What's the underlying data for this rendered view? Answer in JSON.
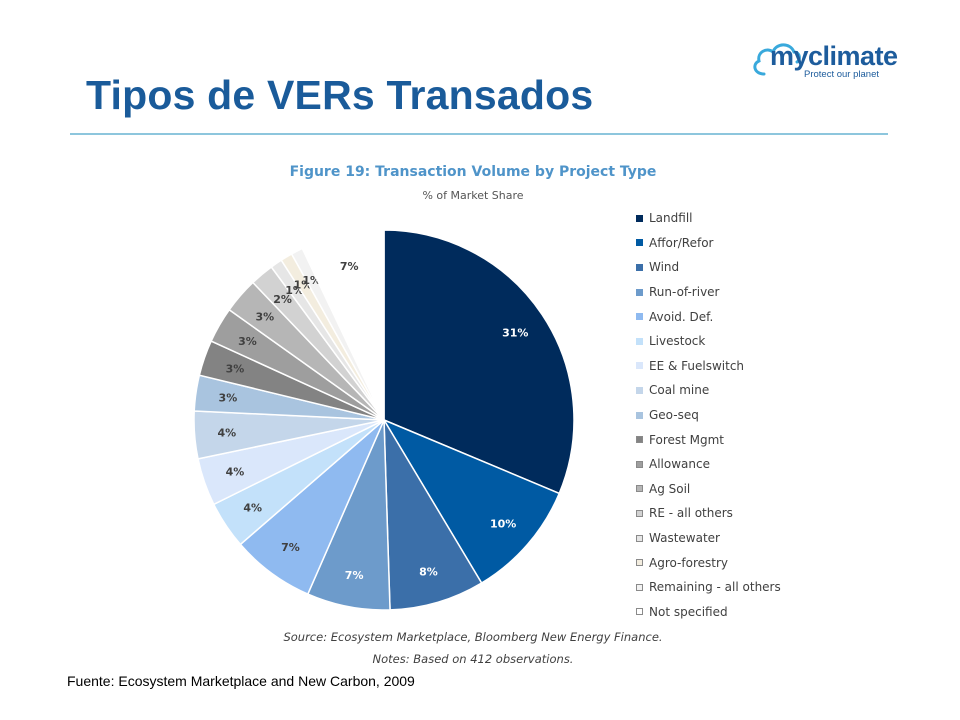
{
  "slide": {
    "title": "Tipos de VERs Transados",
    "footnote": "Fuente: Ecosystem Marketplace and New Carbon, 2009"
  },
  "logo": {
    "name": "myclimate",
    "tagline": "Protect our planet",
    "icon": "cloud-icon",
    "color": "#1d5c9c"
  },
  "colors": {
    "title": "#1a5b9a",
    "rule": "#8dc6dd",
    "figure_title": "#4f94c9"
  },
  "chart_data": {
    "type": "pie",
    "title": "Figure 19: Transaction Volume by Project Type",
    "subtitle": "% of Market Share",
    "categories": [
      "Landfill",
      "Affor/Refor",
      "Wind",
      "Run-of-river",
      "Avoid. Def.",
      "Livestock",
      "EE & Fuelswitch",
      "Coal mine",
      "Geo-seq",
      "Forest Mgmt",
      "Allowance",
      "Ag Soil",
      "RE - all others",
      "Wastewater",
      "Agro-forestry",
      "Remaining - all others",
      "Not specified"
    ],
    "values": [
      31,
      10,
      8,
      7,
      7,
      4,
      4,
      4,
      3,
      3,
      3,
      3,
      2,
      1,
      1,
      1,
      7
    ],
    "labels": [
      "31%",
      "10%",
      "8%",
      "7%",
      "7%",
      "4%",
      "4%",
      "4%",
      "3%",
      "3%",
      "3%",
      "3%",
      "2%",
      "1%",
      "1%",
      "1%",
      "7%"
    ],
    "colors": [
      "#002b5c",
      "#005aa3",
      "#3b6fa9",
      "#6d9bcb",
      "#8fbaf0",
      "#c3e1fa",
      "#dae7fb",
      "#c4d6ea",
      "#a9c4df",
      "#838383",
      "#9e9e9e",
      "#b6b6b6",
      "#d2d2d2",
      "#e6e6e6",
      "#f3eddf",
      "#f2f2f2",
      "#ffffff"
    ],
    "legend_position": "right",
    "source": "Source: Ecosystem Marketplace, Bloomberg New Energy Finance.",
    "notes": "Notes: Based on 412 observations."
  }
}
